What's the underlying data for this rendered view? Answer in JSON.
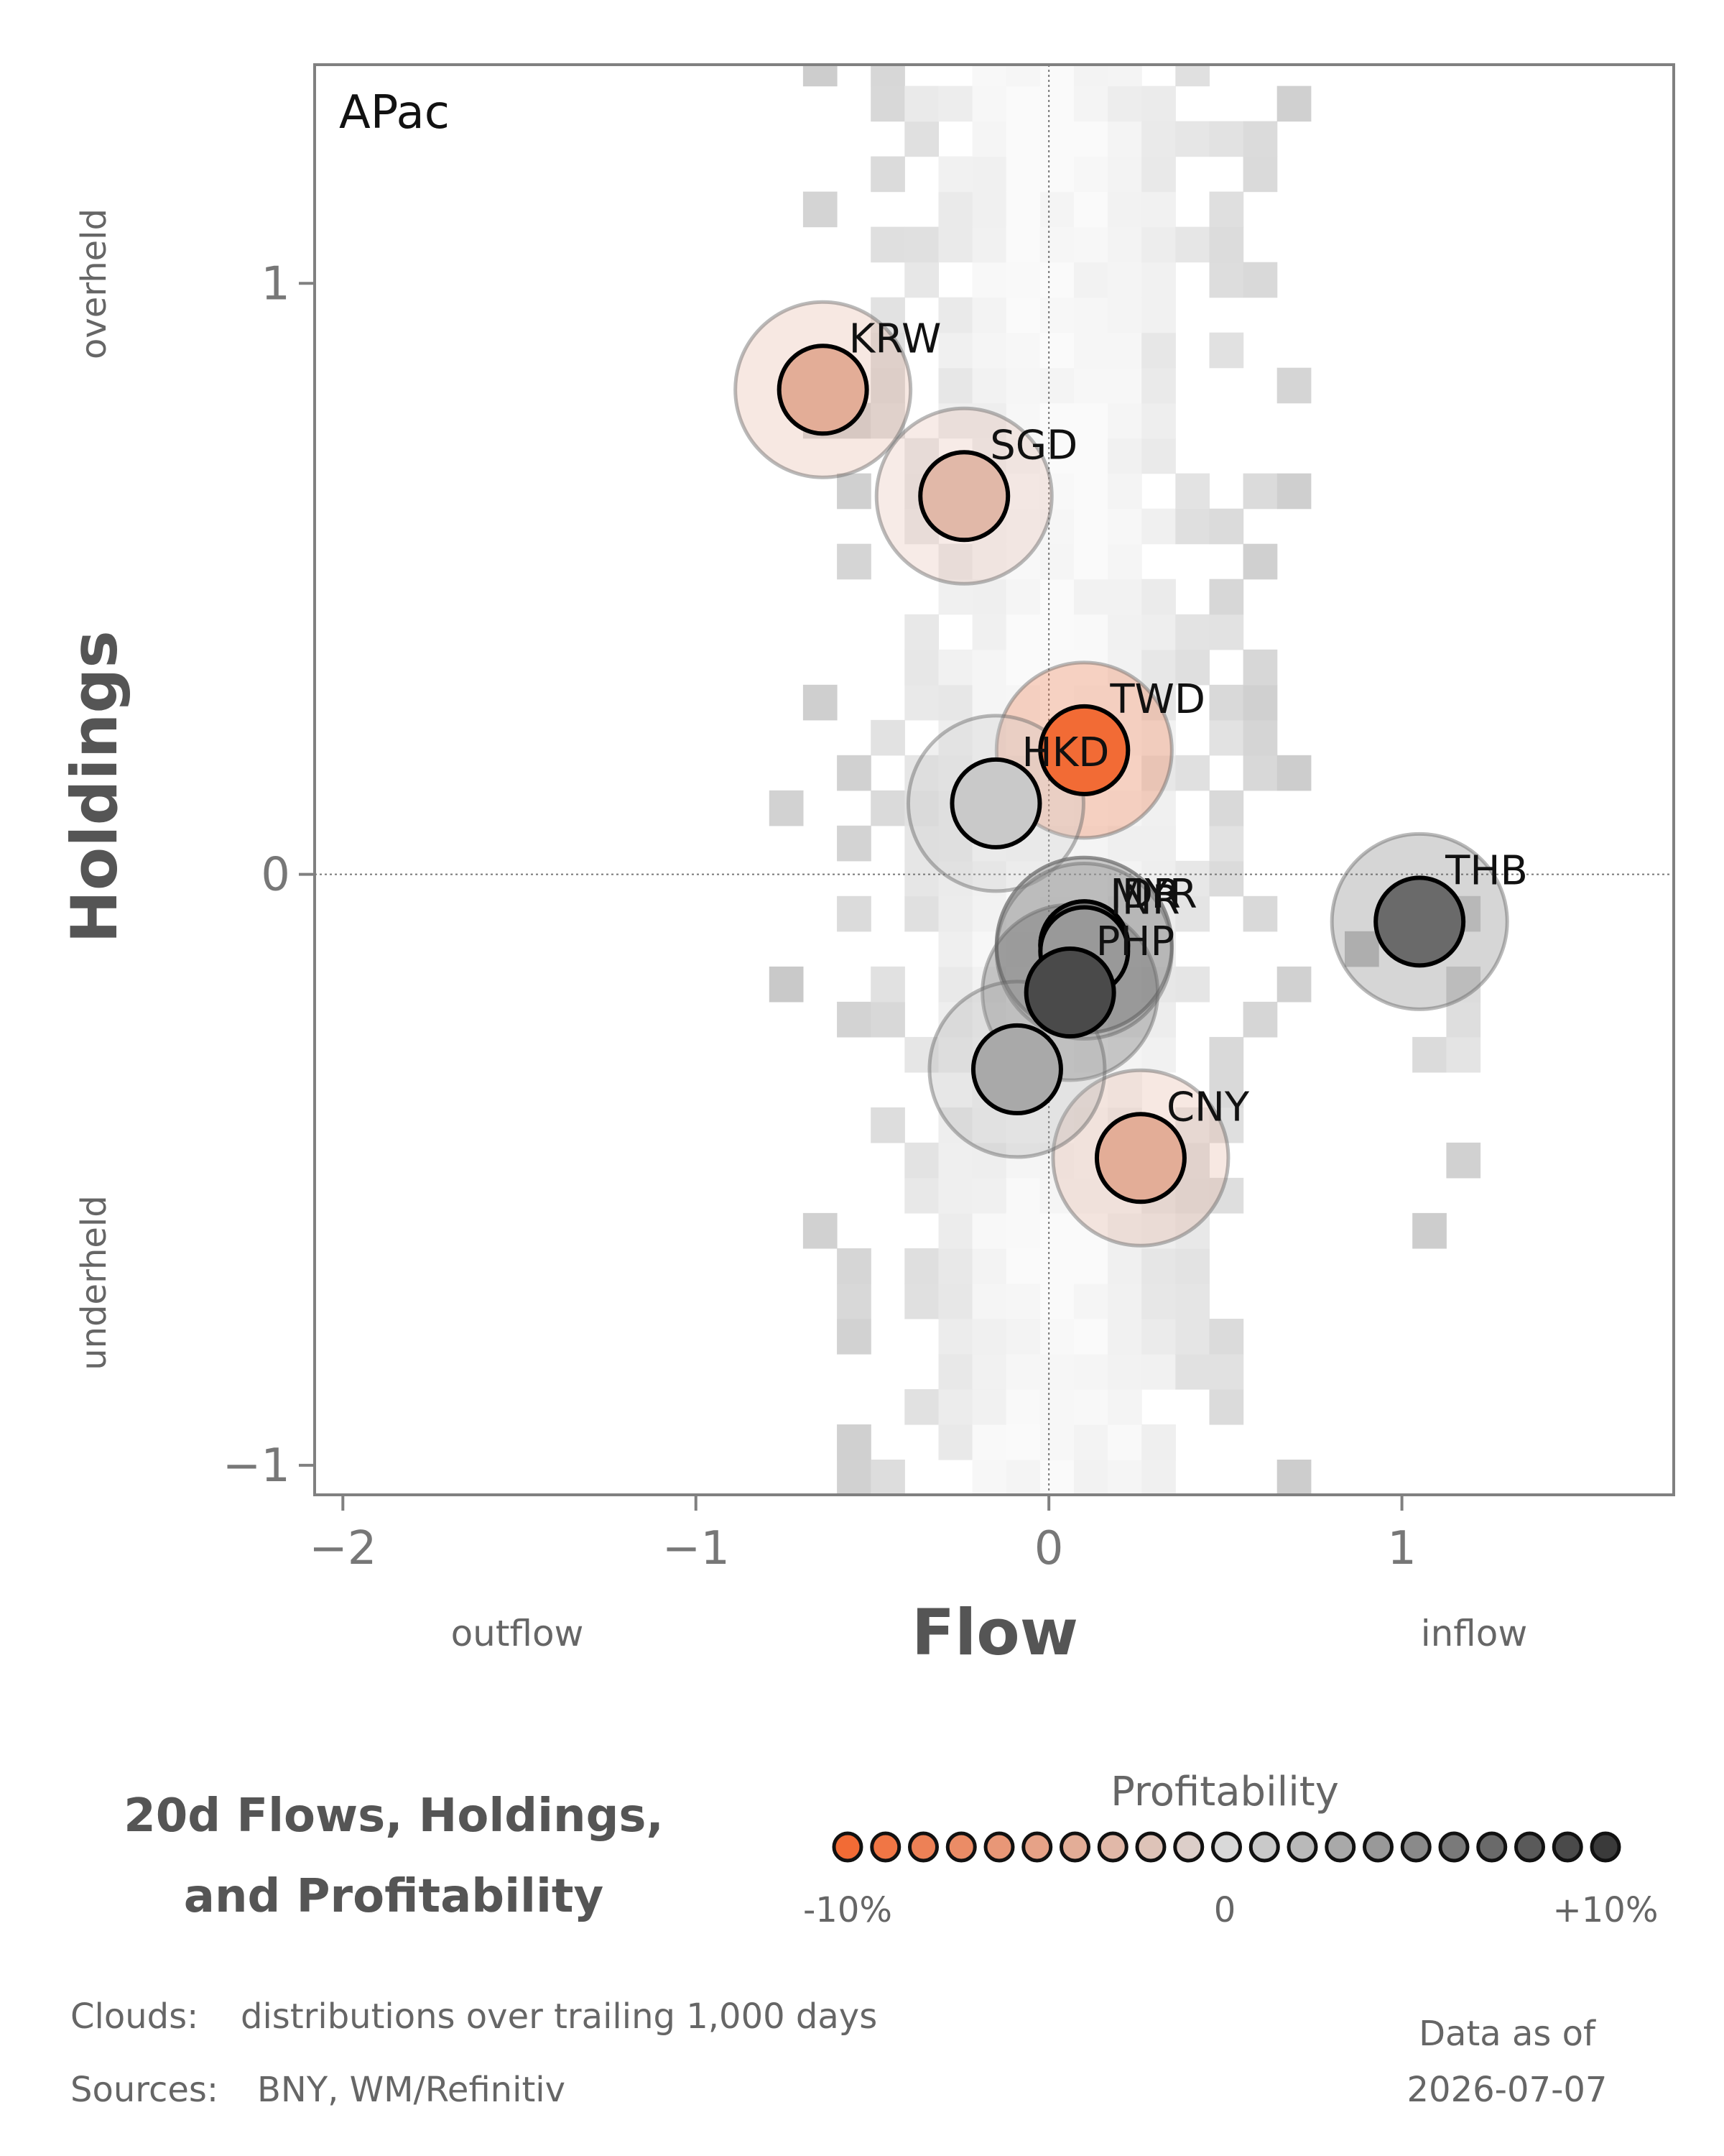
{
  "chart_data": {
    "type": "scatter",
    "panel_label": "APac",
    "title_line1": "20d Flows, Holdings,",
    "title_line2": "and Profitability",
    "xlabel": "Flow",
    "ylabel": "Holdings",
    "x_low_note": "outflow",
    "x_high_note": "inflow",
    "y_high_note": "overheld",
    "y_low_note": "underheld",
    "xlim": [
      -2.08,
      1.77
    ],
    "ylim": [
      -1.05,
      1.37
    ],
    "x_ticks": [
      {
        "value": -2,
        "label": "−2"
      },
      {
        "value": -1,
        "label": "−1"
      },
      {
        "value": 0,
        "label": "0"
      },
      {
        "value": 1,
        "label": "1"
      }
    ],
    "y_ticks": [
      {
        "value": -1,
        "label": "−1"
      },
      {
        "value": 0,
        "label": "0"
      },
      {
        "value": 1,
        "label": "1"
      }
    ],
    "reference_lines": {
      "x": 0,
      "y": 0
    },
    "grid": false,
    "points": [
      {
        "name": "KRW",
        "flow": -0.64,
        "holdings": 0.82,
        "profitability": -4
      },
      {
        "name": "SGD",
        "flow": -0.24,
        "holdings": 0.64,
        "profitability": -3
      },
      {
        "name": "TWD",
        "flow": 0.1,
        "holdings": 0.21,
        "profitability": -10
      },
      {
        "name": "HKD",
        "flow": -0.15,
        "holdings": 0.12,
        "profitability": 1
      },
      {
        "name": "THB",
        "flow": 1.05,
        "holdings": -0.08,
        "profitability": 7
      },
      {
        "name": "IDR",
        "flow": 0.1,
        "holdings": -0.12,
        "profitability": 2
      },
      {
        "name": "MYR",
        "flow": 0.1,
        "holdings": -0.12,
        "profitability": 6
      },
      {
        "name": "INR",
        "flow": 0.1,
        "holdings": -0.13,
        "profitability": 4
      },
      {
        "name": "PHP",
        "flow": 0.06,
        "holdings": -0.2,
        "profitability": 9
      },
      {
        "name": "CNY",
        "flow": 0.26,
        "holdings": -0.48,
        "profitability": -4
      },
      {
        "name": "",
        "flow": -0.09,
        "holdings": -0.33,
        "profitability": 3
      }
    ],
    "cloud_note": "distributions over trailing 1,000 days",
    "colorbar": {
      "title": "Profitability",
      "min_label": "-10%",
      "mid_label": "0",
      "max_label": "+10%",
      "low_color": "#f26b35",
      "mid_color": "#d9d9d9",
      "high_color": "#3a3a3a"
    }
  },
  "footer": {
    "clouds_label": "Clouds:",
    "clouds_text": "distributions over trailing 1,000 days",
    "sources_label": "Sources:",
    "sources_text": "BNY, WM/Refinitiv",
    "data_as_of_label": "Data as of",
    "data_as_of_date": "2026-07-07"
  }
}
